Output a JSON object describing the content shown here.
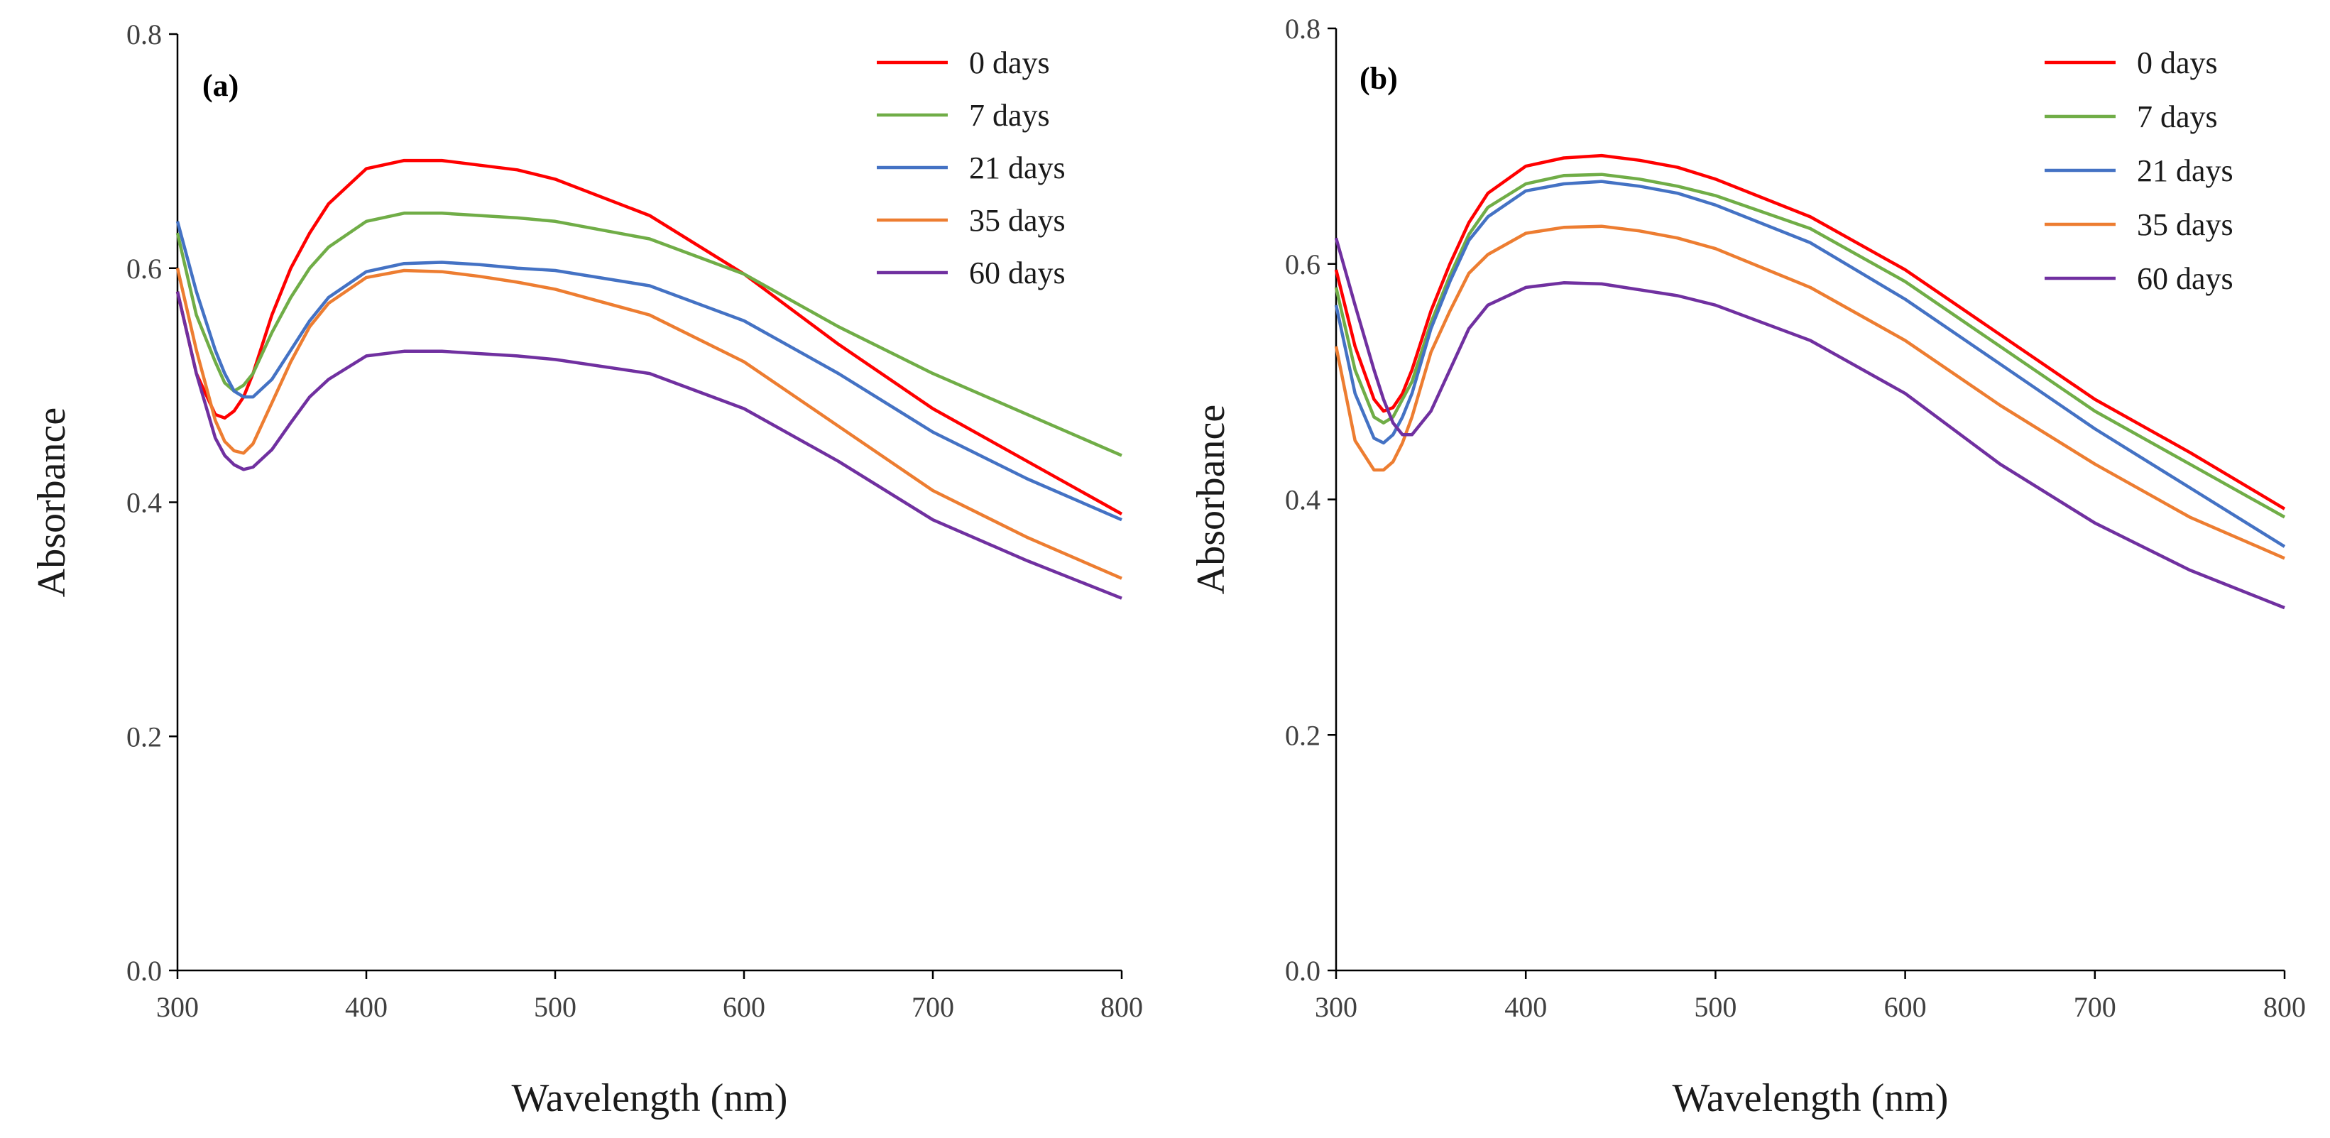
{
  "chart_data": [
    {
      "type": "line",
      "panel_label": "(a)",
      "title": "",
      "xlabel": "Wavelength (nm)",
      "ylabel": "Absorbance",
      "xlim": [
        300,
        800
      ],
      "ylim": [
        0.0,
        0.8
      ],
      "x_ticks": [
        "300",
        "400",
        "500",
        "600",
        "700",
        "800"
      ],
      "y_ticks": [
        "0.0",
        "0.2",
        "0.4",
        "0.6",
        "0.8"
      ],
      "grid": false,
      "legend_position": "top-right",
      "x": [
        300,
        310,
        320,
        325,
        330,
        335,
        340,
        350,
        360,
        370,
        380,
        400,
        420,
        440,
        460,
        480,
        500,
        550,
        600,
        650,
        700,
        750,
        800
      ],
      "series": [
        {
          "name": "0 days",
          "color": "#ff0000",
          "values": [
            0.58,
            0.51,
            0.475,
            0.472,
            0.478,
            0.49,
            0.51,
            0.56,
            0.6,
            0.63,
            0.655,
            0.685,
            0.692,
            0.692,
            0.688,
            0.684,
            0.676,
            0.645,
            0.595,
            0.535,
            0.48,
            0.435,
            0.39
          ]
        },
        {
          "name": "7 days",
          "color": "#70ad47",
          "values": [
            0.63,
            0.56,
            0.52,
            0.502,
            0.495,
            0.5,
            0.51,
            0.545,
            0.575,
            0.6,
            0.618,
            0.64,
            0.647,
            0.647,
            0.645,
            0.643,
            0.64,
            0.625,
            0.595,
            0.55,
            0.51,
            0.475,
            0.44
          ]
        },
        {
          "name": "21 days",
          "color": "#4472c4",
          "values": [
            0.64,
            0.58,
            0.53,
            0.51,
            0.495,
            0.49,
            0.49,
            0.505,
            0.53,
            0.555,
            0.575,
            0.597,
            0.604,
            0.605,
            0.603,
            0.6,
            0.598,
            0.585,
            0.555,
            0.51,
            0.46,
            0.42,
            0.385
          ]
        },
        {
          "name": "35 days",
          "color": "#ed7d31",
          "values": [
            0.6,
            0.53,
            0.47,
            0.452,
            0.444,
            0.442,
            0.45,
            0.485,
            0.52,
            0.55,
            0.57,
            0.592,
            0.598,
            0.597,
            0.593,
            0.588,
            0.582,
            0.56,
            0.52,
            0.465,
            0.41,
            0.37,
            0.335
          ]
        },
        {
          "name": "60 days",
          "color": "#7030a0",
          "values": [
            0.58,
            0.51,
            0.455,
            0.44,
            0.432,
            0.428,
            0.43,
            0.445,
            0.468,
            0.49,
            0.505,
            0.525,
            0.529,
            0.529,
            0.527,
            0.525,
            0.522,
            0.51,
            0.48,
            0.435,
            0.385,
            0.35,
            0.318
          ]
        }
      ]
    },
    {
      "type": "line",
      "panel_label": "(b)",
      "title": "",
      "xlabel": "Wavelength (nm)",
      "ylabel": "Absorbance",
      "xlim": [
        300,
        800
      ],
      "ylim": [
        0.0,
        0.8
      ],
      "x_ticks": [
        "300",
        "400",
        "500",
        "600",
        "700",
        "800"
      ],
      "y_ticks": [
        "0.0",
        "0.2",
        "0.4",
        "0.6",
        "0.8"
      ],
      "grid": false,
      "legend_position": "top-right",
      "x": [
        300,
        310,
        320,
        325,
        330,
        335,
        340,
        350,
        360,
        370,
        380,
        400,
        420,
        440,
        460,
        480,
        500,
        550,
        600,
        650,
        700,
        750,
        800
      ],
      "series": [
        {
          "name": "0 days",
          "color": "#ff0000",
          "values": [
            0.595,
            0.53,
            0.485,
            0.475,
            0.478,
            0.49,
            0.51,
            0.56,
            0.6,
            0.635,
            0.66,
            0.683,
            0.69,
            0.692,
            0.688,
            0.682,
            0.672,
            0.64,
            0.595,
            0.54,
            0.485,
            0.44,
            0.392
          ]
        },
        {
          "name": "7 days",
          "color": "#70ad47",
          "values": [
            0.58,
            0.51,
            0.47,
            0.465,
            0.47,
            0.485,
            0.5,
            0.55,
            0.59,
            0.625,
            0.648,
            0.668,
            0.675,
            0.676,
            0.672,
            0.666,
            0.658,
            0.63,
            0.585,
            0.53,
            0.475,
            0.43,
            0.385
          ]
        },
        {
          "name": "21 days",
          "color": "#4472c4",
          "values": [
            0.565,
            0.49,
            0.452,
            0.448,
            0.455,
            0.47,
            0.49,
            0.545,
            0.585,
            0.62,
            0.64,
            0.662,
            0.668,
            0.67,
            0.666,
            0.66,
            0.65,
            0.618,
            0.57,
            0.515,
            0.46,
            0.41,
            0.36
          ]
        },
        {
          "name": "35 days",
          "color": "#ed7d31",
          "values": [
            0.53,
            0.45,
            0.425,
            0.425,
            0.432,
            0.448,
            0.47,
            0.525,
            0.56,
            0.592,
            0.608,
            0.626,
            0.631,
            0.632,
            0.628,
            0.622,
            0.613,
            0.58,
            0.535,
            0.48,
            0.43,
            0.385,
            0.35
          ]
        },
        {
          "name": "60 days",
          "color": "#7030a0",
          "values": [
            0.622,
            0.565,
            0.51,
            0.485,
            0.465,
            0.455,
            0.455,
            0.475,
            0.51,
            0.545,
            0.565,
            0.58,
            0.584,
            0.583,
            0.578,
            0.573,
            0.565,
            0.535,
            0.49,
            0.43,
            0.38,
            0.34,
            0.308
          ]
        }
      ]
    }
  ]
}
